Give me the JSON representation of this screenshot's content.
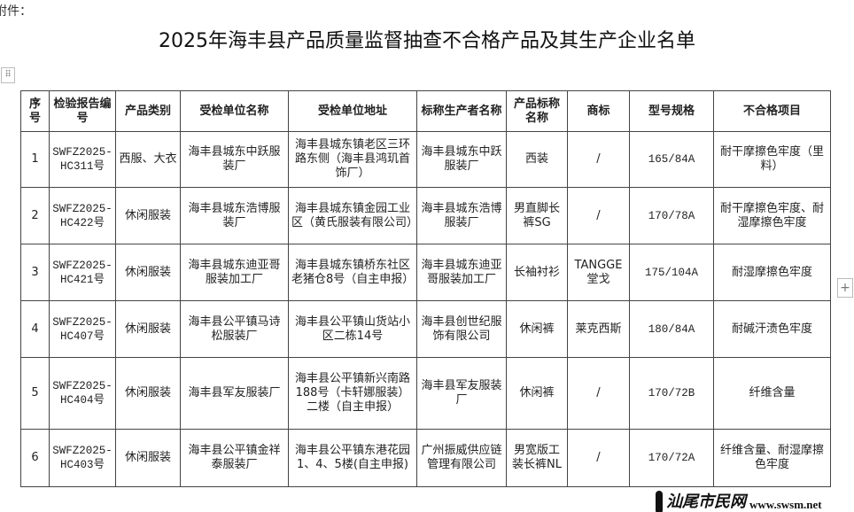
{
  "attachment_label": "附件：",
  "title": "2025年海丰县产品质量监督抽查不合格产品及其生产企业名单",
  "controls": {
    "handle_icon": "⠿",
    "add_icon": "+"
  },
  "table": {
    "headers": [
      "序号",
      "检验报告编号",
      "产品类别",
      "受检单位名称",
      "受检单位地址",
      "标称生产者名称",
      "产品标称名称",
      "商标",
      "型号规格",
      "不合格项目"
    ],
    "rows": [
      [
        "1",
        "SWFZ2025-HC311号",
        "西服、大衣",
        "海丰县城东中跃服装厂",
        "海丰县城东镇老区三环路东侧（海丰县鸿玑首饰厂）",
        "海丰县城东中跃服装厂",
        "西装",
        "/",
        "165/84A",
        "耐干摩擦色牢度（里料）"
      ],
      [
        "2",
        "SWFZ2025-HC422号",
        "休闲服装",
        "海丰县城东浩博服装厂",
        "海丰县城东镇金园工业区（黄氏服装有限公司）",
        "海丰县城东浩博服装厂",
        "男直脚长裤SG",
        "/",
        "170/78A",
        "耐干摩擦色牢度、耐湿摩擦色牢度"
      ],
      [
        "3",
        "SWFZ2025-HC421号",
        "休闲服装",
        "海丰县城东迪亚哥服装加工厂",
        "海丰县城东镇桥东社区老猪仓8号（自主申报）",
        "海丰县城东迪亚哥服装加工厂",
        "长袖衬衫",
        "TANGGE堂戈",
        "175/104A",
        "耐湿摩擦色牢度"
      ],
      [
        "4",
        "SWFZ2025-HC407号",
        "休闲服装",
        "海丰县公平镇马诗松服装厂",
        "海丰县公平镇山货站小区二栋14号",
        "海丰县创世纪服饰有限公司",
        "休闲裤",
        "莱克西斯",
        "180/84A",
        "耐碱汗渍色牢度"
      ],
      [
        "5",
        "SWFZ2025-HC404号",
        "休闲服装",
        "海丰县军友服装厂",
        "海丰县公平镇新兴南路188号（卡轩娜服装）二楼（自主申报）",
        "海丰县军友服装厂",
        "休闲裤",
        "/",
        "170/72B",
        "纤维含量"
      ],
      [
        "6",
        "SWFZ2025-HC403号",
        "休闲服装",
        "海丰县公平镇金祥泰服装厂",
        "海丰县公平镇东港花园1、4、5楼(自主申报)",
        "广州振威供应链管理有限公司",
        "男宽版工装长裤NL",
        "/",
        "170/72A",
        "纤维含量、耐湿摩擦色牢度"
      ]
    ]
  },
  "watermark": {
    "text": "汕尾市民网",
    "url": "www.swsm.net"
  }
}
